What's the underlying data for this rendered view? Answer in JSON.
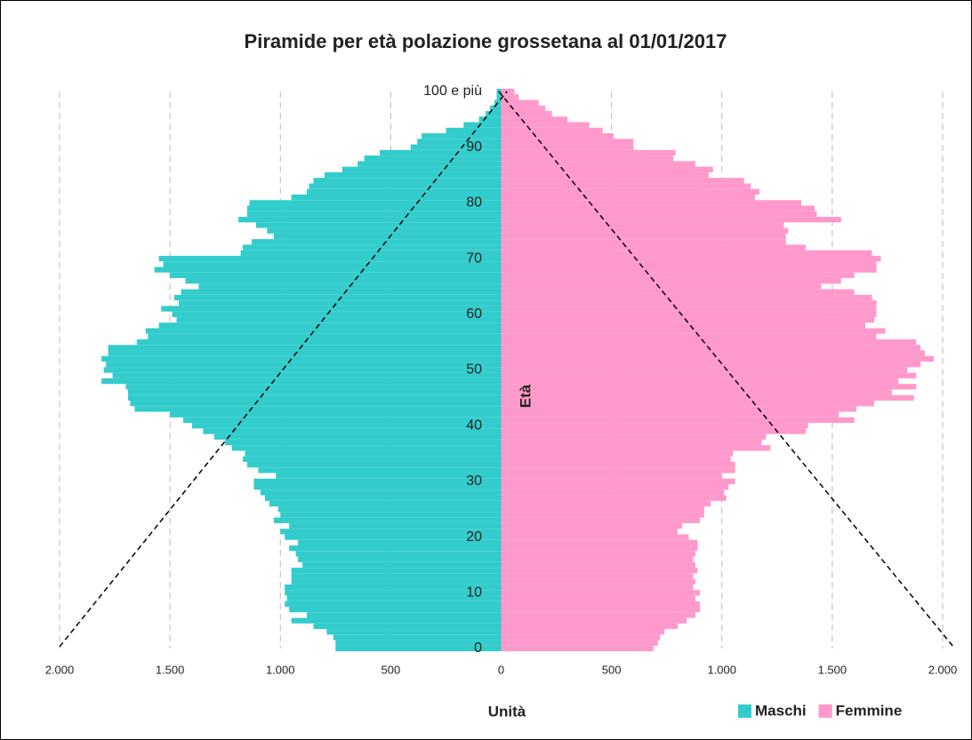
{
  "chart_data": {
    "type": "pyramid",
    "title": "Piramide per età polazione grossetana al 01/01/2017",
    "x_label": "Unità",
    "y_label": "Età",
    "categories": [
      "0",
      null,
      null,
      null,
      null,
      null,
      null,
      null,
      null,
      null,
      "10",
      null,
      null,
      null,
      null,
      null,
      null,
      null,
      null,
      null,
      "20",
      null,
      null,
      null,
      null,
      null,
      null,
      null,
      null,
      null,
      "30",
      null,
      null,
      null,
      null,
      null,
      null,
      null,
      null,
      null,
      "40",
      null,
      null,
      null,
      null,
      null,
      null,
      null,
      null,
      null,
      "50",
      null,
      null,
      null,
      null,
      null,
      null,
      null,
      null,
      null,
      "60",
      null,
      null,
      null,
      null,
      null,
      null,
      null,
      null,
      null,
      "70",
      null,
      null,
      null,
      null,
      null,
      null,
      null,
      null,
      null,
      "80",
      null,
      null,
      null,
      null,
      null,
      null,
      null,
      null,
      null,
      "90",
      null,
      null,
      null,
      null,
      null,
      null,
      null,
      null,
      null,
      "100 e più"
    ],
    "series": [
      {
        "name": "Maschi",
        "color": "#33CCCC",
        "side": "left",
        "values": [
          750,
          750,
          760,
          790,
          850,
          950,
          880,
          960,
          980,
          970,
          980,
          980,
          950,
          950,
          950,
          900,
          920,
          930,
          960,
          920,
          980,
          1000,
          960,
          1030,
          1000,
          1010,
          1050,
          1070,
          1090,
          1120,
          1120,
          1020,
          1100,
          1150,
          1170,
          1160,
          1220,
          1250,
          1300,
          1350,
          1400,
          1440,
          1500,
          1660,
          1680,
          1690,
          1690,
          1700,
          1810,
          1760,
          1800,
          1790,
          1810,
          1780,
          1780,
          1650,
          1600,
          1610,
          1550,
          1470,
          1490,
          1540,
          1460,
          1480,
          1450,
          1370,
          1430,
          1500,
          1570,
          1530,
          1550,
          1180,
          1170,
          1130,
          1030,
          1060,
          1110,
          1190,
          1150,
          1150,
          1140,
          950,
          880,
          870,
          850,
          800,
          720,
          650,
          620,
          550,
          410,
          380,
          360,
          250,
          170,
          100,
          70,
          50,
          30,
          20,
          20
        ]
      },
      {
        "name": "Femmine",
        "color": "#FF99CC",
        "side": "right",
        "values": [
          690,
          710,
          720,
          740,
          800,
          840,
          880,
          900,
          900,
          880,
          900,
          870,
          880,
          870,
          890,
          880,
          870,
          880,
          890,
          890,
          850,
          800,
          820,
          900,
          920,
          920,
          950,
          1020,
          1010,
          1030,
          1060,
          1000,
          1060,
          1060,
          1040,
          1050,
          1220,
          1180,
          1200,
          1380,
          1390,
          1600,
          1530,
          1610,
          1690,
          1870,
          1770,
          1880,
          1800,
          1880,
          1840,
          1900,
          1960,
          1920,
          1900,
          1880,
          1700,
          1740,
          1650,
          1690,
          1700,
          1700,
          1700,
          1680,
          1600,
          1450,
          1540,
          1600,
          1700,
          1700,
          1720,
          1680,
          1380,
          1290,
          1290,
          1300,
          1280,
          1540,
          1430,
          1420,
          1360,
          1150,
          1170,
          1130,
          1100,
          940,
          960,
          880,
          780,
          790,
          600,
          600,
          510,
          460,
          400,
          300,
          230,
          200,
          170,
          80,
          60
        ]
      }
    ],
    "xlim": [
      0,
      2000
    ],
    "xticks": [
      0,
      500,
      {
        "value": 1000,
        "label": "1.000"
      },
      {
        "value": 1500,
        "label": "1.500"
      },
      {
        "value": 2000,
        "label": "2.000"
      }
    ],
    "grid": true,
    "legend": "bottom-right"
  }
}
